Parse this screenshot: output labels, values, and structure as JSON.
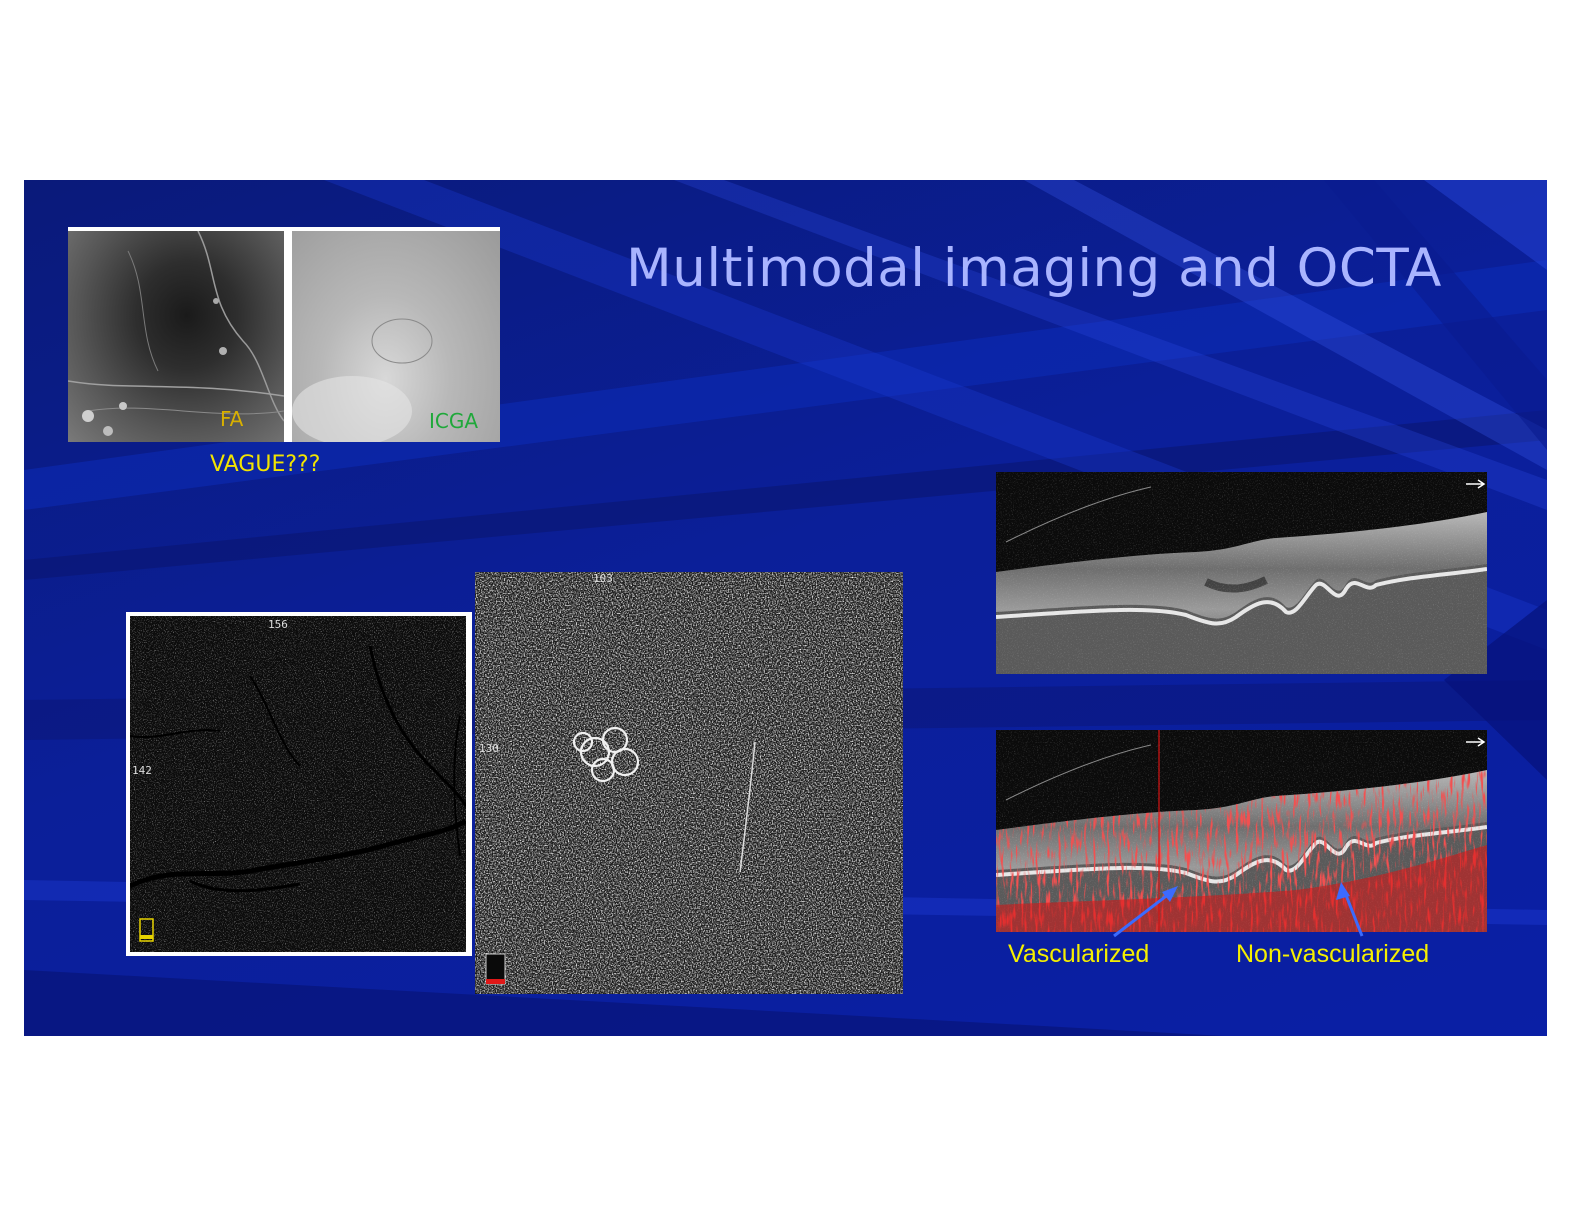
{
  "slide": {
    "title": "Multimodal imaging and OCTA",
    "fa_label": "FA",
    "icga_label": "ICGA",
    "vague_caption": "VAGUE???",
    "octa_left": {
      "top_number": "156",
      "side_number": "142"
    },
    "octa_right": {
      "top_number": "103",
      "side_number": "130"
    },
    "vascularized_label": "Vascularized",
    "non_vascularized_label": "Non-vascularized"
  },
  "colors": {
    "title": "#a9b4ff",
    "caption_yellow": "#f2e400",
    "arrow_blue": "#3b6bff",
    "flow_red": "#e01818",
    "slide_blue": "#0b1f99"
  }
}
